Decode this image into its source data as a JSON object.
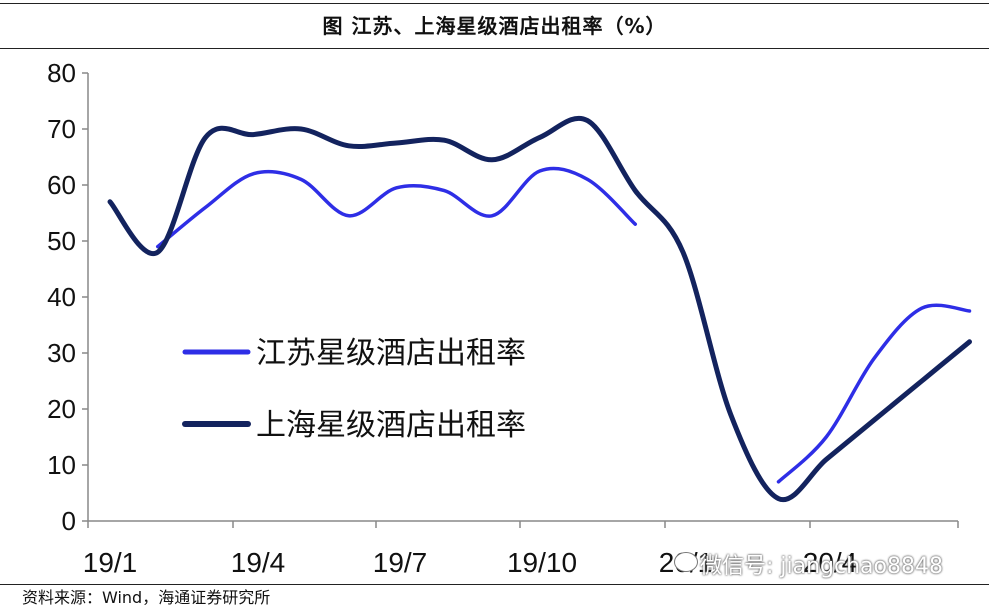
{
  "title": "图  江苏、上海星级酒店出租率（%）",
  "source": "资料来源：Wind，海通证券研究所",
  "watermark": "微信号: jiangchao8848",
  "chart_data": {
    "type": "line",
    "x_ticks": [
      "19/1",
      "19/4",
      "19/7",
      "19/10",
      "20/1",
      "20/4"
    ],
    "x_months": [
      "19/1",
      "19/2",
      "19/3",
      "19/4",
      "19/5",
      "19/6",
      "19/7",
      "19/8",
      "19/9",
      "19/10",
      "19/11",
      "19/12",
      "20/1",
      "20/2",
      "20/3",
      "20/4",
      "20/5",
      "20/6",
      "20/7"
    ],
    "ylim": [
      0,
      80
    ],
    "y_ticks": [
      0,
      10,
      20,
      30,
      40,
      50,
      60,
      70,
      80
    ],
    "grid": false,
    "legend_position": "center-left",
    "series": [
      {
        "name": "江苏星级酒店出租率",
        "color": "#2e2ee6",
        "values": [
          null,
          49,
          56,
          62,
          61,
          54.5,
          59.5,
          59,
          54.5,
          62.5,
          61,
          53,
          null,
          null,
          7,
          15,
          29,
          38,
          37.5
        ]
      },
      {
        "name": "上海星级酒店出租率",
        "color": "#13235e",
        "values": [
          57,
          48,
          68.5,
          69,
          70,
          67,
          67.5,
          68,
          64.5,
          68.5,
          71.5,
          59,
          48,
          19,
          4,
          11,
          18,
          25,
          32
        ]
      }
    ]
  }
}
